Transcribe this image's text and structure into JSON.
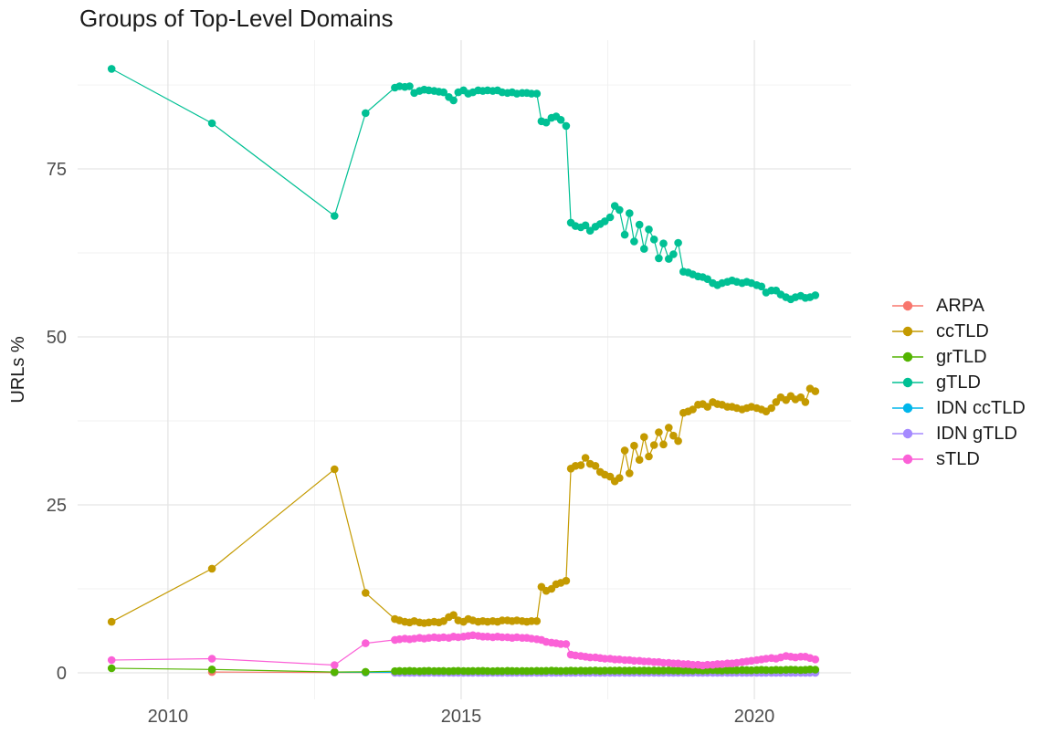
{
  "chart_data": {
    "type": "line",
    "title": "Groups of Top-Level Domains",
    "xlabel": "",
    "ylabel": "URLs %",
    "grid": "on",
    "legend_position": "right",
    "background": "#ffffff",
    "grid_major_color": "#e5e5e5",
    "grid_minor_color": "#f0f0f0",
    "tick_label_color": "#4d4d4d",
    "axis_title_color": "#1a1a1a",
    "title_color": "#1a1a1a",
    "x_ticks": [
      2010,
      2015,
      2020
    ],
    "y_ticks": [
      0,
      25,
      50,
      75
    ],
    "x_minor": [
      2012.5,
      2017.5
    ],
    "y_minor": [
      12.5,
      37.5,
      62.5,
      87.5
    ],
    "xlim": [
      2008.46,
      2021.65
    ],
    "ylim": [
      -3.94,
      94.16
    ],
    "x_dense": [
      2013.87,
      2013.95,
      2014.04,
      2014.12,
      2014.2,
      2014.29,
      2014.37,
      2014.45,
      2014.54,
      2014.62,
      2014.7,
      2014.79,
      2014.87,
      2014.95,
      2015.04,
      2015.12,
      2015.2,
      2015.29,
      2015.37,
      2015.45,
      2015.54,
      2015.62,
      2015.7,
      2015.79,
      2015.87,
      2015.95,
      2016.04,
      2016.12,
      2016.2,
      2016.29,
      2016.37,
      2016.45,
      2016.54,
      2016.62,
      2016.7,
      2016.79,
      2016.87,
      2016.95,
      2017.04,
      2017.12,
      2017.2,
      2017.29,
      2017.37,
      2017.45,
      2017.54,
      2017.62,
      2017.7,
      2017.79,
      2017.87,
      2017.95,
      2018.04,
      2018.12,
      2018.2,
      2018.29,
      2018.37,
      2018.45,
      2018.54,
      2018.62,
      2018.7,
      2018.79,
      2018.87,
      2018.95,
      2019.04,
      2019.12,
      2019.2,
      2019.29,
      2019.37,
      2019.45,
      2019.54,
      2019.62,
      2019.7,
      2019.79,
      2019.87,
      2019.95,
      2020.04,
      2020.12,
      2020.2,
      2020.29,
      2020.37,
      2020.45,
      2020.54,
      2020.62,
      2020.7,
      2020.79,
      2020.87,
      2020.95,
      2021.04
    ],
    "draw_order": [
      "ARPA",
      "IDN ccTLD",
      "IDN gTLD",
      "grTLD",
      "ccTLD",
      "gTLD",
      "sTLD"
    ],
    "series": [
      {
        "name": "ARPA",
        "color": "#F8766D",
        "sparse": [
          [
            2010.75,
            0.12
          ],
          [
            2012.84,
            0.06
          ],
          [
            2013.37,
            0.05
          ]
        ],
        "dense_fill": 0.04
      },
      {
        "name": "ccTLD",
        "color": "#C49A00",
        "sparse": [
          [
            2009.04,
            7.6
          ],
          [
            2010.75,
            15.5
          ],
          [
            2012.84,
            30.3
          ],
          [
            2013.37,
            11.9
          ]
        ],
        "dense": [
          8.0,
          7.8,
          7.6,
          7.5,
          7.7,
          7.5,
          7.4,
          7.5,
          7.6,
          7.5,
          7.7,
          8.3,
          8.6,
          7.8,
          7.6,
          8.0,
          7.8,
          7.6,
          7.7,
          7.6,
          7.7,
          7.6,
          7.8,
          7.8,
          7.7,
          7.8,
          7.7,
          7.6,
          7.7,
          7.7,
          12.8,
          12.2,
          12.5,
          13.2,
          13.4,
          13.7,
          30.4,
          30.8,
          30.9,
          32.0,
          31.1,
          30.8,
          29.9,
          29.5,
          29.2,
          28.5,
          29.0,
          33.1,
          29.7,
          33.8,
          31.7,
          35.1,
          32.2,
          33.9,
          35.8,
          34.0,
          36.5,
          35.3,
          34.5,
          38.7,
          38.9,
          39.2,
          39.9,
          40.0,
          39.6,
          40.3,
          40.0,
          39.9,
          39.6,
          39.6,
          39.4,
          39.2,
          39.4,
          39.6,
          39.4,
          39.2,
          38.9,
          39.4,
          40.3,
          41.0,
          40.6,
          41.2,
          40.7,
          41.0,
          40.3,
          42.3,
          41.9
        ]
      },
      {
        "name": "grTLD",
        "color": "#53B400",
        "sparse": [
          [
            2009.04,
            0.68
          ],
          [
            2010.75,
            0.5
          ],
          [
            2012.84,
            0.12
          ],
          [
            2013.37,
            0.15
          ]
        ],
        "dense": [
          0.25,
          0.28,
          0.26,
          0.3,
          0.27,
          0.25,
          0.28,
          0.3,
          0.26,
          0.27,
          0.29,
          0.25,
          0.28,
          0.3,
          0.27,
          0.26,
          0.29,
          0.28,
          0.3,
          0.27,
          0.25,
          0.28,
          0.26,
          0.3,
          0.28,
          0.27,
          0.29,
          0.26,
          0.28,
          0.3,
          0.28,
          0.3,
          0.32,
          0.3,
          0.28,
          0.3,
          0.32,
          0.3,
          0.33,
          0.3,
          0.32,
          0.35,
          0.3,
          0.32,
          0.34,
          0.32,
          0.35,
          0.33,
          0.32,
          0.35,
          0.33,
          0.35,
          0.32,
          0.35,
          0.33,
          0.35,
          0.37,
          0.35,
          0.33,
          0.35,
          0.37,
          0.35,
          0.38,
          0.35,
          0.37,
          0.4,
          0.38,
          0.35,
          0.38,
          0.4,
          0.38,
          0.42,
          0.4,
          0.38,
          0.42,
          0.45,
          0.42,
          0.4,
          0.45,
          0.42,
          0.45,
          0.48,
          0.45,
          0.42,
          0.45,
          0.5,
          0.48
        ]
      },
      {
        "name": "gTLD",
        "color": "#00C094",
        "sparse": [
          [
            2009.04,
            89.9
          ],
          [
            2010.75,
            81.8
          ],
          [
            2012.84,
            68.0
          ],
          [
            2013.37,
            83.3
          ]
        ],
        "dense": [
          87.1,
          87.3,
          87.2,
          87.3,
          86.3,
          86.6,
          86.8,
          86.7,
          86.6,
          86.5,
          86.4,
          85.7,
          85.2,
          86.4,
          86.7,
          86.2,
          86.4,
          86.7,
          86.6,
          86.7,
          86.6,
          86.7,
          86.4,
          86.3,
          86.4,
          86.2,
          86.3,
          86.3,
          86.2,
          86.2,
          82.1,
          81.9,
          82.6,
          82.8,
          82.3,
          81.4,
          67.0,
          66.5,
          66.3,
          66.6,
          65.8,
          66.4,
          66.8,
          67.2,
          67.8,
          69.5,
          68.9,
          65.2,
          68.4,
          64.2,
          66.7,
          63.1,
          66.0,
          64.5,
          61.7,
          63.9,
          61.6,
          62.3,
          64.0,
          59.7,
          59.6,
          59.3,
          59.0,
          58.9,
          58.6,
          58.0,
          57.7,
          58.0,
          58.2,
          58.4,
          58.2,
          58.0,
          58.2,
          58.0,
          57.7,
          57.5,
          56.6,
          56.9,
          56.9,
          56.3,
          55.9,
          55.6,
          55.9,
          56.1,
          55.8,
          55.9,
          56.2
        ]
      },
      {
        "name": "IDN ccTLD",
        "color": "#00B6EB",
        "sparse": [
          [
            2012.84,
            0.1
          ],
          [
            2013.37,
            0.08
          ]
        ],
        "dense_fill": 0.08
      },
      {
        "name": "IDN gTLD",
        "color": "#A58AFF",
        "sparse": [],
        "dense_fill": 0.02
      },
      {
        "name": "sTLD",
        "color": "#FB61D7",
        "sparse": [
          [
            2009.04,
            1.9
          ],
          [
            2010.75,
            2.1
          ],
          [
            2012.84,
            1.15
          ],
          [
            2013.37,
            4.4
          ]
        ],
        "dense": [
          4.9,
          5.0,
          5.1,
          5.0,
          5.1,
          5.2,
          5.1,
          5.2,
          5.3,
          5.2,
          5.3,
          5.2,
          5.4,
          5.3,
          5.4,
          5.5,
          5.6,
          5.5,
          5.4,
          5.4,
          5.3,
          5.4,
          5.3,
          5.3,
          5.2,
          5.3,
          5.2,
          5.2,
          5.1,
          5.0,
          4.9,
          4.6,
          4.5,
          4.4,
          4.3,
          4.3,
          2.7,
          2.6,
          2.5,
          2.4,
          2.3,
          2.3,
          2.2,
          2.1,
          2.1,
          2.0,
          2.0,
          1.9,
          1.9,
          1.8,
          1.8,
          1.7,
          1.7,
          1.6,
          1.6,
          1.5,
          1.5,
          1.4,
          1.4,
          1.3,
          1.3,
          1.2,
          1.2,
          1.1,
          1.2,
          1.2,
          1.3,
          1.3,
          1.4,
          1.4,
          1.5,
          1.6,
          1.7,
          1.8,
          1.9,
          2.0,
          2.1,
          2.2,
          2.1,
          2.3,
          2.5,
          2.4,
          2.3,
          2.4,
          2.4,
          2.2,
          2.0
        ]
      }
    ]
  }
}
